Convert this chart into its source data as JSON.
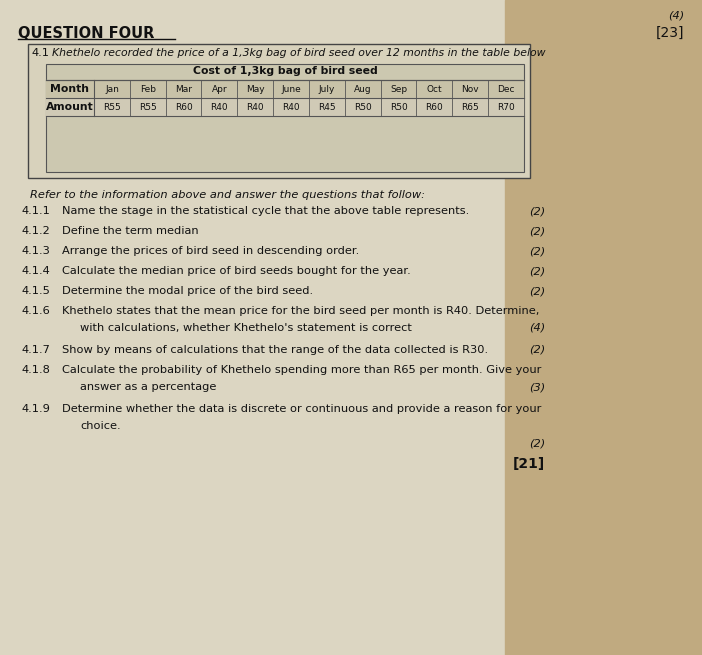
{
  "bg_left": "#e8e0cc",
  "bg_right": "#c8b890",
  "page_color": "#ddd8c4",
  "title": "QUESTION FOUR",
  "mark_top_right": "(4)",
  "mark_title_right": "[23]",
  "section_label": "4.1",
  "section_intro": "Khethelo recorded the price of a 1,3kg bag of bird seed over 12 months in the table below",
  "table_title": "Cost of 1,3kg bag of bird seed",
  "table_months": [
    "Month",
    "Jan",
    "Feb",
    "Mar",
    "Apr",
    "May",
    "June",
    "July",
    "Aug",
    "Sep",
    "Oct",
    "Nov",
    "Dec"
  ],
  "table_row_label": "Amount",
  "table_amounts": [
    "R55",
    "R55",
    "R60",
    "R40",
    "R40",
    "R40",
    "R45",
    "R50",
    "R50",
    "R60",
    "R65",
    "R70"
  ],
  "refer_text": "Refer to the information above and answer the questions that follow:",
  "questions": [
    {
      "num": "4.1.1",
      "indent": 55,
      "text": "Name the stage in the statistical cycle that the above table represents.",
      "marks": "(2)",
      "marks_on_next": false,
      "extra_lines": 0
    },
    {
      "num": "4.1.2",
      "indent": 55,
      "text": "Define the term median",
      "marks": "(2)",
      "marks_on_next": false,
      "extra_lines": 0
    },
    {
      "num": "4.1.3",
      "indent": 55,
      "text": "Arrange the prices of bird seed in descending order.",
      "marks": "(2)",
      "marks_on_next": false,
      "extra_lines": 0
    },
    {
      "num": "4.1.4",
      "indent": 55,
      "text": "Calculate the median price of bird seeds bought for the year.",
      "marks": "(2)",
      "marks_on_next": false,
      "extra_lines": 0
    },
    {
      "num": "4.1.5",
      "indent": 55,
      "text": "Determine the modal price of the bird seed.",
      "marks": "(2)",
      "marks_on_next": false,
      "extra_lines": 0
    },
    {
      "num": "4.1.6",
      "indent": 55,
      "text": "Khethelo states that the mean price for the bird seed per month is R40. Determine,",
      "text2": "with calculations, whether Khethelo's statement is correct",
      "marks": "(4)",
      "marks_on_next": false,
      "extra_lines": 1
    },
    {
      "num": "4.1.7",
      "indent": 55,
      "text": "Show by means of calculations that the range of the data collected is R30.",
      "marks": "(2)",
      "marks_on_next": false,
      "extra_lines": 0
    },
    {
      "num": "4.1.8",
      "indent": 55,
      "text": "Calculate the probability of Khethelo spending more than R65 per month. Give your",
      "text2": "answer as a percentage",
      "marks": "(3)",
      "marks_on_next": false,
      "extra_lines": 1
    },
    {
      "num": "4.1.9",
      "indent": 45,
      "text": "Determine whether the data is discrete or continuous and provide a reason for your",
      "text2": "choice.",
      "marks": "(2)",
      "marks_on_next": true,
      "extra_lines": 1
    }
  ],
  "total_marks": "[21]"
}
